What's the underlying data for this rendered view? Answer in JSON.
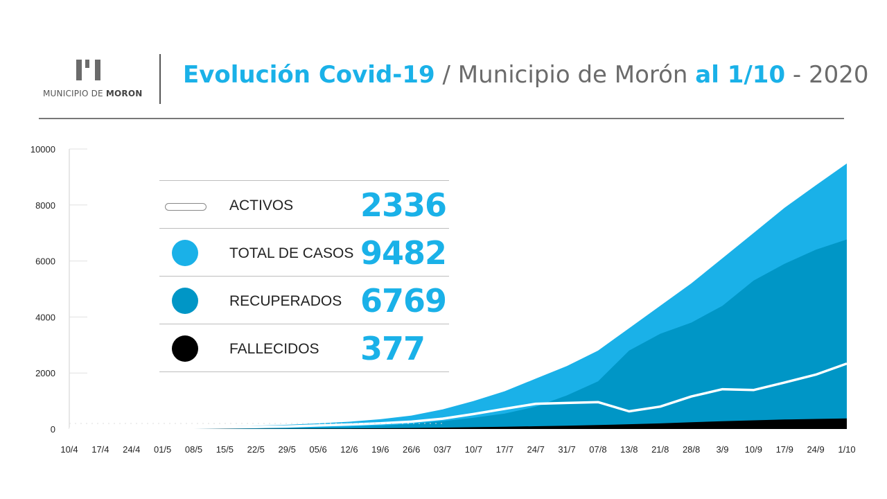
{
  "header": {
    "logo_text_prefix": "MUNICIPIO DE ",
    "logo_text_bold": "MORON",
    "title_part1": "Evolución Covid-19",
    "title_part2": " / Municipio de Morón ",
    "title_part3": "al 1/10",
    "title_part4": " - 2020"
  },
  "legend": [
    {
      "label": "ACTIVOS",
      "value": "2336",
      "color": "#ffffff"
    },
    {
      "label": "TOTAL DE CASOS",
      "value": "9482",
      "color": "#1ab1e8"
    },
    {
      "label": "RECUPERADOS",
      "value": "6769",
      "color": "#0096c6"
    },
    {
      "label": "FALLECIDOS",
      "value": "377",
      "color": "#000000"
    }
  ],
  "chart_data": {
    "type": "area",
    "ylim": [
      0,
      10000
    ],
    "yticks": [
      "0",
      "2000",
      "4000",
      "6000",
      "8000",
      "10000"
    ],
    "xticks": [
      "10/4",
      "17/4",
      "24/4",
      "01/5",
      "08/5",
      "15/5",
      "22/5",
      "29/5",
      "05/6",
      "12/6",
      "19/6",
      "26/6",
      "03/7",
      "10/7",
      "17/7",
      "24/7",
      "31/7",
      "07/8",
      "13/8",
      "21/8",
      "28/8",
      "3/9",
      "10/9",
      "17/9",
      "24/9",
      "1/10"
    ],
    "series": [
      {
        "name": "TOTAL DE CASOS",
        "color": "#1ab1e8",
        "values": [
          5,
          20,
          35,
          50,
          65,
          90,
          120,
          150,
          200,
          260,
          350,
          480,
          700,
          1000,
          1350,
          1800,
          2250,
          2800,
          3600,
          4400,
          5200,
          6100,
          7000,
          7900,
          8700,
          9482
        ]
      },
      {
        "name": "RECUPERADOS",
        "color": "#0096c6",
        "values": [
          0,
          5,
          10,
          15,
          20,
          30,
          40,
          50,
          60,
          80,
          120,
          180,
          280,
          400,
          550,
          800,
          1200,
          1700,
          2800,
          3400,
          3800,
          4400,
          5300,
          5900,
          6400,
          6769
        ]
      },
      {
        "name": "FALLECIDOS",
        "color": "#000000",
        "values": [
          0,
          0,
          1,
          2,
          3,
          5,
          7,
          10,
          14,
          20,
          28,
          38,
          50,
          65,
          80,
          100,
          120,
          140,
          170,
          200,
          240,
          280,
          310,
          340,
          360,
          377
        ]
      },
      {
        "name": "ACTIVOS",
        "color": "#ffffff",
        "values": [
          5,
          15,
          25,
          33,
          42,
          55,
          73,
          90,
          126,
          160,
          202,
          262,
          370,
          535,
          720,
          900,
          930,
          960,
          630,
          800,
          1160,
          1420,
          1390,
          1660,
          1940,
          2336
        ]
      }
    ]
  }
}
